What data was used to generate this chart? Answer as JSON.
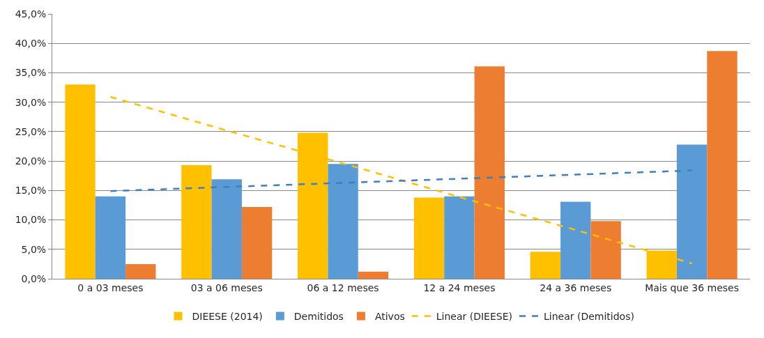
{
  "chart_data": {
    "type": "bar",
    "categories": [
      "0 a 03 meses",
      "03 a 06 meses",
      "06 a 12 meses",
      "12 a 24 meses",
      "24 a 36 meses",
      "Mais que 36 meses"
    ],
    "series": [
      {
        "name": "DIEESE (2014)",
        "color": "#ffc000",
        "values": [
          33.0,
          19.3,
          24.8,
          13.8,
          4.6,
          4.8
        ]
      },
      {
        "name": "Demitidos",
        "color": "#5b9bd5",
        "values": [
          14.0,
          16.9,
          19.5,
          14.0,
          13.1,
          22.8
        ]
      },
      {
        "name": "Ativos",
        "color": "#ed7d31",
        "values": [
          2.5,
          12.2,
          1.2,
          36.1,
          9.8,
          38.7
        ]
      },
      {
        "name": "Linear (DIEESE)",
        "type": "line",
        "line_style": "dashed",
        "color": "#ffc000",
        "values": [
          30.9,
          25.2,
          19.6,
          13.9,
          8.3,
          2.6
        ]
      },
      {
        "name": "Linear (Demitidos)",
        "type": "line",
        "line_style": "dashed",
        "color": "#3f7fc0",
        "values": [
          14.9,
          15.6,
          16.3,
          17.0,
          17.7,
          18.4
        ]
      }
    ],
    "ylim": [
      0,
      45
    ],
    "yticks": [
      {
        "value": 0,
        "label": "0,0%"
      },
      {
        "value": 5,
        "label": "5,0%"
      },
      {
        "value": 10,
        "label": "10,0%"
      },
      {
        "value": 15,
        "label": "15,0%"
      },
      {
        "value": 20,
        "label": "20,0%"
      },
      {
        "value": 25,
        "label": "25,0%"
      },
      {
        "value": 30,
        "label": "30,0%"
      },
      {
        "value": 35,
        "label": "35,0%"
      },
      {
        "value": 40,
        "label": "40,0%"
      },
      {
        "value": 45,
        "label": "45,0%"
      }
    ],
    "grid": "y",
    "legend": "bottom"
  }
}
